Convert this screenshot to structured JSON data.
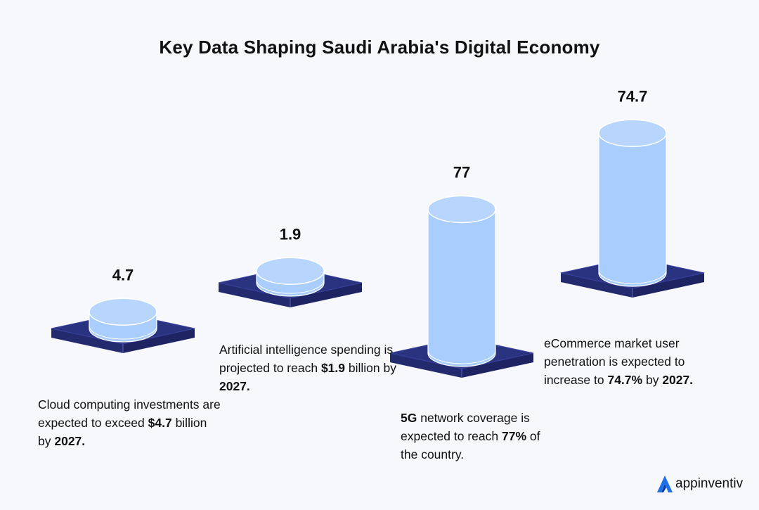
{
  "title": "Key Data Shaping Saudi Arabia's Digital Economy",
  "chart_data": {
    "type": "bar",
    "style": "3d-cylinder",
    "title": "Key Data Shaping Saudi Arabia's Digital Economy",
    "categories": [
      "Cloud computing investments",
      "Artificial intelligence spending",
      "5G network coverage",
      "eCommerce market user penetration"
    ],
    "values": [
      4.7,
      1.9,
      77,
      74.7
    ],
    "value_labels": [
      "4.7",
      "1.9",
      "77",
      "74.7"
    ],
    "colors": {
      "cylinder": "#a9cdfc",
      "base": "#2a3380"
    }
  },
  "captions": [
    {
      "pre": "Cloud computing investments are expected to exceed ",
      "b1": "$4.7",
      "mid": " billion by ",
      "b2": "2027.",
      "post": ""
    },
    {
      "pre": "Artificial intelligence spending is projected to reach ",
      "b1": "$1.9",
      "mid": " billion by ",
      "b2": "2027.",
      "post": ""
    },
    {
      "pre": "",
      "b1": "5G",
      "mid": " network coverage is expected to reach ",
      "b2": "77%",
      "post": " of the country."
    },
    {
      "pre": "eCommerce market user penetration is expected to increase to ",
      "b1": "74.7%",
      "mid": " by ",
      "b2": "2027.",
      "post": ""
    }
  ],
  "logo": {
    "name": "appinventiv"
  }
}
